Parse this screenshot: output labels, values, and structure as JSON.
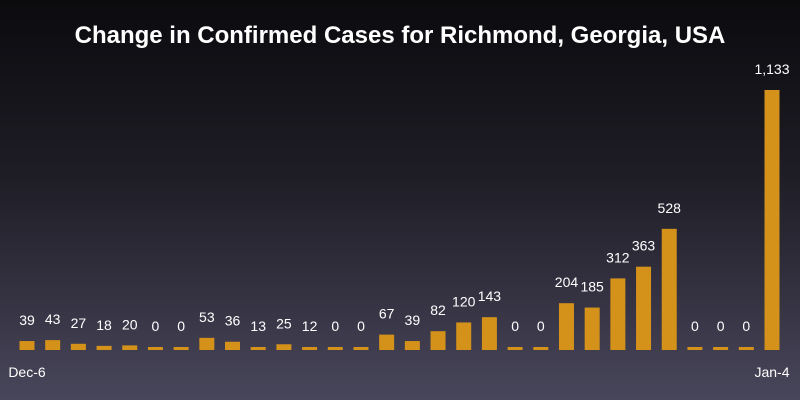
{
  "chart_data": {
    "type": "bar",
    "title": "Change in Confirmed Cases for Richmond, Georgia, USA",
    "xlabel": "",
    "ylabel": "",
    "x_tick_labels": [
      "Dec-6",
      "Jan-4"
    ],
    "values": [
      39,
      43,
      27,
      18,
      20,
      0,
      0,
      53,
      36,
      13,
      25,
      12,
      0,
      0,
      67,
      39,
      82,
      120,
      143,
      0,
      0,
      204,
      185,
      312,
      363,
      528,
      0,
      0,
      0,
      1133
    ],
    "value_labels": [
      "39",
      "43",
      "27",
      "18",
      "20",
      "0",
      "0",
      "53",
      "36",
      "13",
      "25",
      "12",
      "0",
      "0",
      "67",
      "39",
      "82",
      "120",
      "143",
      "0",
      "0",
      "204",
      "185",
      "312",
      "363",
      "528",
      "0",
      "0",
      "0",
      "1,133"
    ],
    "ylim": [
      0,
      1133
    ],
    "grid": false,
    "bar_color": "#d4921a"
  }
}
